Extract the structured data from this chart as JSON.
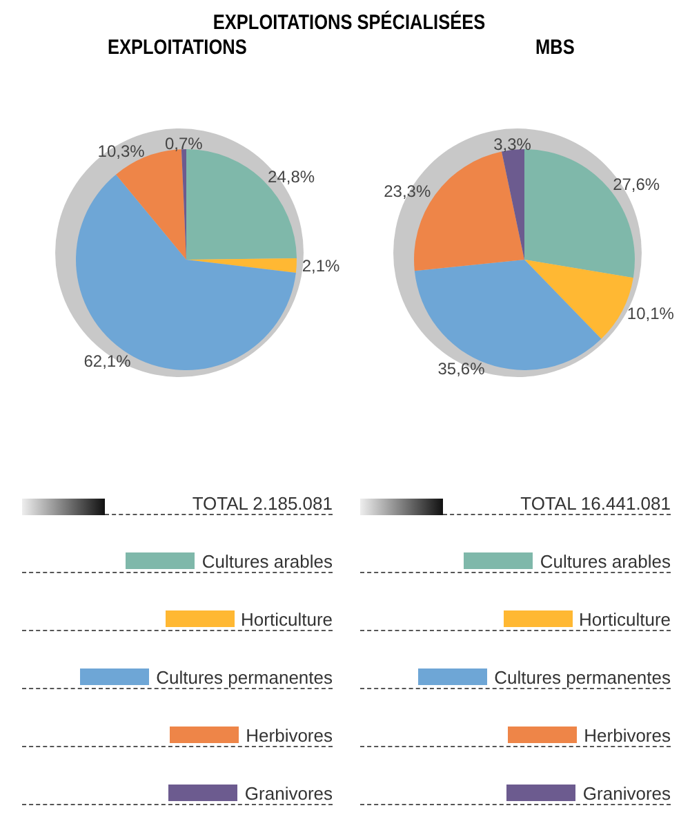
{
  "chart_data": [
    {
      "type": "pie",
      "title": "EXPLOITATIONS SPÉCIALISÉES",
      "subtitle": "EXPLOITATIONS",
      "categories": [
        "Cultures arables",
        "Horticulture",
        "Cultures permanentes",
        "Herbivores",
        "Granivores"
      ],
      "values": [
        24.8,
        2.1,
        62.1,
        10.3,
        0.7
      ],
      "value_labels": [
        "24,8%",
        "2,1%",
        "62,1%",
        "10,3%",
        "0,7%"
      ],
      "colors": [
        "#7fb8aa",
        "#ffb833",
        "#6ea6d6",
        "#ee8548",
        "#6c5b8f"
      ],
      "annotations": [
        "TOTAL 2.185.081"
      ],
      "legend": "bottom"
    },
    {
      "type": "pie",
      "subtitle": "MBS",
      "categories": [
        "Cultures arables",
        "Horticulture",
        "Cultures permanentes",
        "Herbivores",
        "Granivores"
      ],
      "values": [
        27.6,
        10.1,
        35.6,
        23.3,
        3.3
      ],
      "value_labels": [
        "27,6%",
        "10,1%",
        "35,6%",
        "23,3%",
        "3,3%"
      ],
      "colors": [
        "#7fb8aa",
        "#ffb833",
        "#6ea6d6",
        "#ee8548",
        "#6c5b8f"
      ],
      "annotations": [
        "TOTAL 16.441.081"
      ],
      "legend": "bottom"
    }
  ]
}
